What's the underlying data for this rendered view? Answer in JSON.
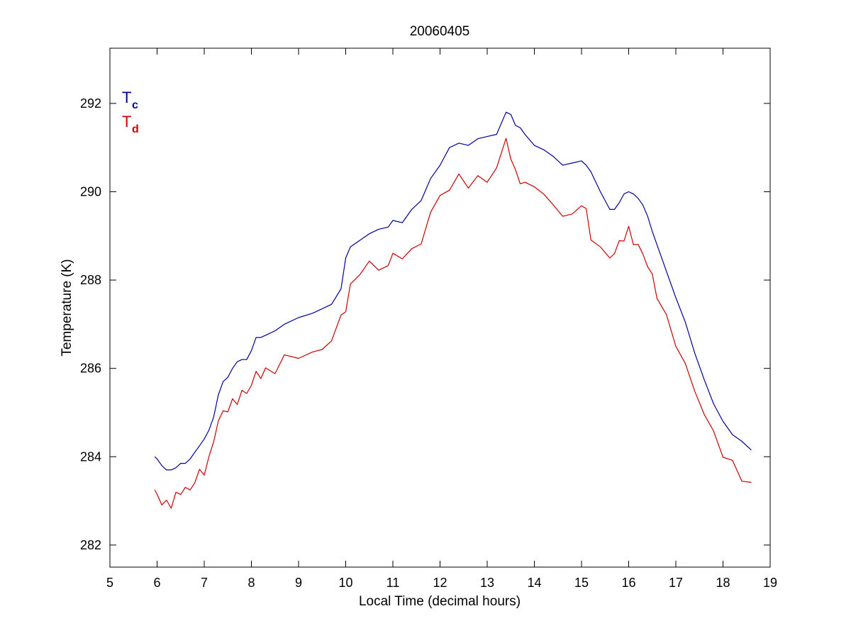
{
  "chart_data": {
    "type": "line",
    "title": "20060405",
    "xlabel": "Local Time (decimal hours)",
    "ylabel": "Temperature (K)",
    "xlim": [
      5,
      19
    ],
    "ylim": [
      281.5,
      293.25
    ],
    "xticks": [
      "5",
      "6",
      "7",
      "8",
      "9",
      "10",
      "11",
      "12",
      "13",
      "14",
      "15",
      "16",
      "17",
      "18",
      "19"
    ],
    "yticks": [
      "282",
      "284",
      "286",
      "288",
      "290",
      "292"
    ],
    "grid": false,
    "legend_position": "top-left",
    "series": [
      {
        "name_main": "T",
        "name_sub": "c",
        "color": "#0000a0",
        "x": [
          5.95,
          6.0,
          6.1,
          6.2,
          6.3,
          6.4,
          6.5,
          6.6,
          6.7,
          6.8,
          6.9,
          7.0,
          7.1,
          7.2,
          7.3,
          7.4,
          7.5,
          7.6,
          7.7,
          7.8,
          7.9,
          8.0,
          8.1,
          8.2,
          8.3,
          8.5,
          8.7,
          9.0,
          9.3,
          9.5,
          9.7,
          9.9,
          10.0,
          10.1,
          10.3,
          10.5,
          10.7,
          10.9,
          11.0,
          11.2,
          11.4,
          11.6,
          11.8,
          12.0,
          12.2,
          12.4,
          12.6,
          12.8,
          13.0,
          13.2,
          13.4,
          13.5,
          13.6,
          13.7,
          13.8,
          14.0,
          14.2,
          14.4,
          14.6,
          14.8,
          15.0,
          15.1,
          15.2,
          15.4,
          15.6,
          15.7,
          15.8,
          15.9,
          16.0,
          16.1,
          16.2,
          16.3,
          16.4,
          16.5,
          16.6,
          16.8,
          17.0,
          17.2,
          17.4,
          17.6,
          17.8,
          18.0,
          18.2,
          18.4,
          18.6
        ],
        "y": [
          284.0,
          283.95,
          283.8,
          283.7,
          283.7,
          283.75,
          283.85,
          283.85,
          283.95,
          284.1,
          284.25,
          284.4,
          284.6,
          284.9,
          285.4,
          285.7,
          285.8,
          286.0,
          286.15,
          286.2,
          286.2,
          286.4,
          286.7,
          286.7,
          286.75,
          286.85,
          287.0,
          287.15,
          287.25,
          287.35,
          287.45,
          287.8,
          288.5,
          288.75,
          288.9,
          289.05,
          289.15,
          289.2,
          289.35,
          289.3,
          289.6,
          289.8,
          290.3,
          290.6,
          291.0,
          291.1,
          291.05,
          291.2,
          291.25,
          291.3,
          291.8,
          291.75,
          291.5,
          291.45,
          291.3,
          291.05,
          290.95,
          290.8,
          290.6,
          290.65,
          290.7,
          290.6,
          290.45,
          290.0,
          289.6,
          289.6,
          289.75,
          289.95,
          290.0,
          289.95,
          289.85,
          289.7,
          289.45,
          289.1,
          288.8,
          288.2,
          287.6,
          287.05,
          286.35,
          285.75,
          285.2,
          284.8,
          284.5,
          284.35,
          284.15
        ]
      },
      {
        "name_main": "T",
        "name_sub": "d",
        "color": "#cc0000",
        "x": [
          5.95,
          6.0,
          6.1,
          6.2,
          6.3,
          6.4,
          6.5,
          6.6,
          6.7,
          6.8,
          6.9,
          7.0,
          7.1,
          7.2,
          7.3,
          7.4,
          7.5,
          7.6,
          7.7,
          7.8,
          7.9,
          8.0,
          8.1,
          8.2,
          8.3,
          8.5,
          8.7,
          9.0,
          9.3,
          9.5,
          9.7,
          9.9,
          10.0,
          10.1,
          10.3,
          10.5,
          10.7,
          10.9,
          11.0,
          11.2,
          11.4,
          11.6,
          11.8,
          12.0,
          12.2,
          12.4,
          12.6,
          12.8,
          13.0,
          13.2,
          13.4,
          13.5,
          13.6,
          13.7,
          13.8,
          14.0,
          14.2,
          14.4,
          14.6,
          14.8,
          15.0,
          15.1,
          15.2,
          15.4,
          15.6,
          15.7,
          15.8,
          15.9,
          16.0,
          16.1,
          16.2,
          16.3,
          16.4,
          16.5,
          16.6,
          16.8,
          17.0,
          17.2,
          17.4,
          17.6,
          17.8,
          18.0,
          18.2,
          18.4,
          18.6
        ],
        "y": [
          283.25,
          283.1,
          283.0,
          282.9,
          282.95,
          283.1,
          283.2,
          283.3,
          283.2,
          283.5,
          283.6,
          283.7,
          283.9,
          284.4,
          284.8,
          285.0,
          285.1,
          285.2,
          285.3,
          285.4,
          285.5,
          285.6,
          285.9,
          285.85,
          285.9,
          286.0,
          286.2,
          286.3,
          286.35,
          286.4,
          286.7,
          287.1,
          287.4,
          287.8,
          288.2,
          288.4,
          288.2,
          288.4,
          288.5,
          288.6,
          288.6,
          288.9,
          289.5,
          289.9,
          290.1,
          290.3,
          290.2,
          290.25,
          290.3,
          290.5,
          291.2,
          290.8,
          290.4,
          290.3,
          290.1,
          290.2,
          289.9,
          289.7,
          289.5,
          289.4,
          289.8,
          289.5,
          289.0,
          288.7,
          288.5,
          288.65,
          288.8,
          289.0,
          289.1,
          288.9,
          288.75,
          288.6,
          288.35,
          288.05,
          287.7,
          287.1,
          286.6,
          286.05,
          285.5,
          285.0,
          284.5,
          284.1,
          283.8,
          283.55,
          283.35
        ]
      }
    ]
  }
}
